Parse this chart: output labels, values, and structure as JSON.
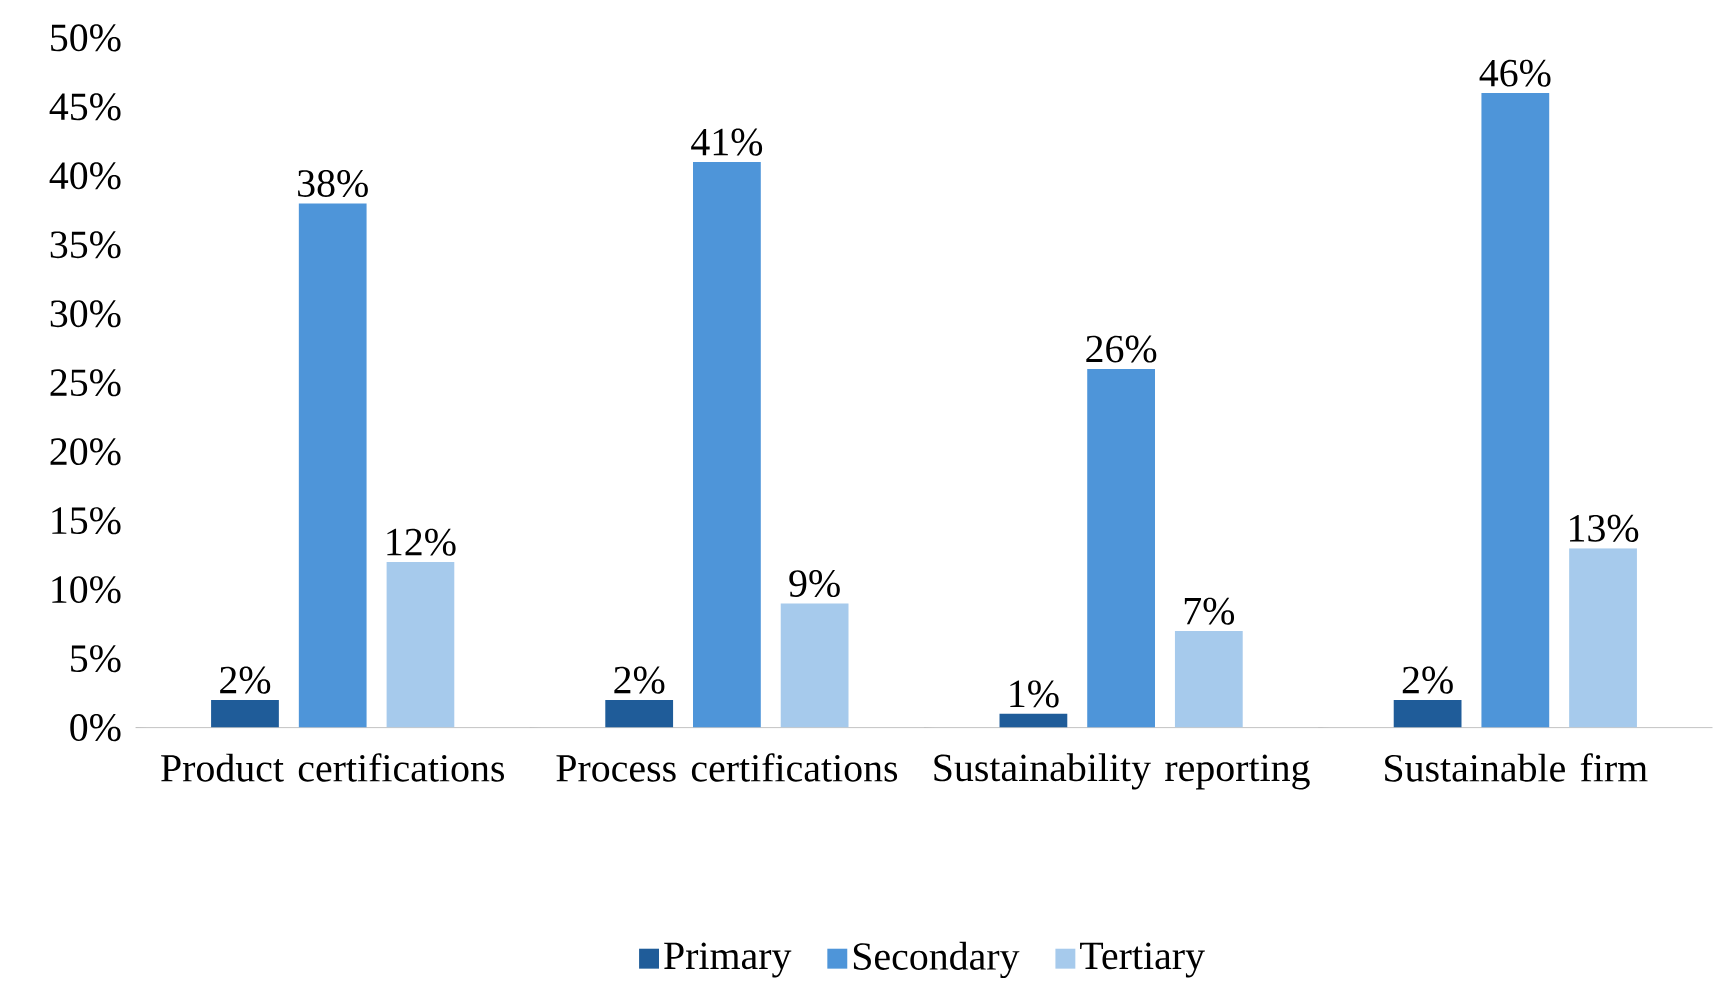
{
  "chart_data": {
    "type": "bar",
    "categories": [
      "Product certifications",
      "Process certifications",
      "Sustainability reporting",
      "Sustainable firm"
    ],
    "series": [
      {
        "name": "Primary",
        "color": "#1f5c99",
        "values": [
          2,
          2,
          1,
          2
        ],
        "value_labels": [
          "2%",
          "2%",
          "1%",
          "2%"
        ]
      },
      {
        "name": "Secondary",
        "color": "#4e95d9",
        "values": [
          38,
          41,
          26,
          46
        ],
        "value_labels": [
          "38%",
          "41%",
          "26%",
          "46%"
        ]
      },
      {
        "name": "Tertiary",
        "color": "#a6caec",
        "values": [
          12,
          9,
          7,
          13
        ],
        "value_labels": [
          "12%",
          "9%",
          "7%",
          "13%"
        ]
      }
    ],
    "ylim": [
      0,
      50
    ],
    "yticks": [
      {
        "value": 0,
        "label": "0%"
      },
      {
        "value": 5,
        "label": "5%"
      },
      {
        "value": 10,
        "label": "10%"
      },
      {
        "value": 15,
        "label": "15%"
      },
      {
        "value": 20,
        "label": "20%"
      },
      {
        "value": 25,
        "label": "25%"
      },
      {
        "value": 30,
        "label": "30%"
      },
      {
        "value": 35,
        "label": "35%"
      },
      {
        "value": 40,
        "label": "40%"
      },
      {
        "value": 45,
        "label": "45%"
      },
      {
        "value": 50,
        "label": "50%"
      }
    ],
    "grid": false,
    "legend": "bottom"
  }
}
